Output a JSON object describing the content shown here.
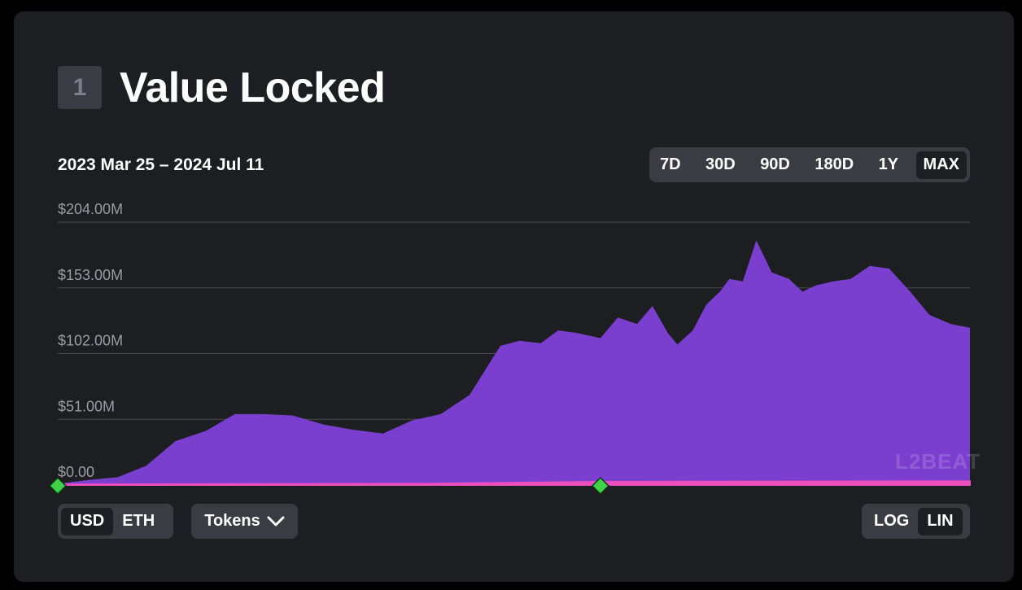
{
  "header": {
    "badge_number": "1",
    "title": "Value Locked"
  },
  "date_range": "2023 Mar 25 – 2024 Jul 11",
  "range_options": [
    {
      "label": "7D",
      "active": false
    },
    {
      "label": "30D",
      "active": false
    },
    {
      "label": "90D",
      "active": false
    },
    {
      "label": "180D",
      "active": false
    },
    {
      "label": "1Y",
      "active": false
    },
    {
      "label": "MAX",
      "active": true
    }
  ],
  "unit_options": [
    {
      "label": "USD",
      "active": true
    },
    {
      "label": "ETH",
      "active": false
    }
  ],
  "tokens_button": {
    "label": "Tokens",
    "icon": "chevron-down-icon"
  },
  "scale_options": [
    {
      "label": "LOG",
      "active": false
    },
    {
      "label": "LIN",
      "active": true
    }
  ],
  "watermark": "L2BEAT",
  "colors": {
    "background": "#1d1e22",
    "area_fill": "#7b3fd0",
    "secondary_area": "#ec4fbc",
    "gridline": "#4a4c53",
    "milestone_marker": "#3fd14a"
  },
  "chart_data": {
    "type": "area",
    "x_start": "2023-03-25",
    "x_end": "2024-07-11",
    "ylim": [
      0,
      204
    ],
    "y_unit": "$M",
    "y_ticks": [
      "$0.00",
      "$51.00M",
      "$102.00M",
      "$153.00M",
      "$204.00M"
    ],
    "grid": true,
    "scale": "linear",
    "series": [
      {
        "name": "",
        "color": "#7b3fd0",
        "x": [
          "2023-03-25",
          "2023-04-10",
          "2023-04-25",
          "2023-05-10",
          "2023-05-25",
          "2023-06-10",
          "2023-06-25",
          "2023-07-10",
          "2023-07-25",
          "2023-08-10",
          "2023-08-25",
          "2023-09-10",
          "2023-09-25",
          "2023-10-10",
          "2023-10-25",
          "2023-11-10",
          "2023-11-20",
          "2023-12-01",
          "2023-12-10",
          "2023-12-20",
          "2024-01-01",
          "2024-01-10",
          "2024-01-20",
          "2024-01-28",
          "2024-02-05",
          "2024-02-10",
          "2024-02-18",
          "2024-02-25",
          "2024-03-03",
          "2024-03-08",
          "2024-03-15",
          "2024-03-22",
          "2024-03-30",
          "2024-04-08",
          "2024-04-15",
          "2024-04-22",
          "2024-05-01",
          "2024-05-10",
          "2024-05-20",
          "2024-05-30",
          "2024-06-10",
          "2024-06-20",
          "2024-07-01",
          "2024-07-11"
        ],
        "values": [
          1,
          4,
          6,
          15,
          34,
          42,
          55,
          55,
          54,
          47,
          43,
          40,
          50,
          55,
          70,
          108,
          112,
          110,
          120,
          118,
          114,
          130,
          125,
          139,
          118,
          109,
          120,
          140,
          150,
          160,
          158,
          190,
          165,
          160,
          150,
          155,
          158,
          160,
          170,
          168,
          150,
          132,
          125,
          122
        ]
      },
      {
        "name": "",
        "color": "#ec4fbc",
        "x": [
          "2023-03-25",
          "2023-10-01",
          "2024-01-01",
          "2024-07-11"
        ],
        "values": [
          0.5,
          1.0,
          2.5,
          3.0
        ]
      }
    ],
    "milestones": [
      "2023-03-25",
      "2024-01-01"
    ]
  }
}
